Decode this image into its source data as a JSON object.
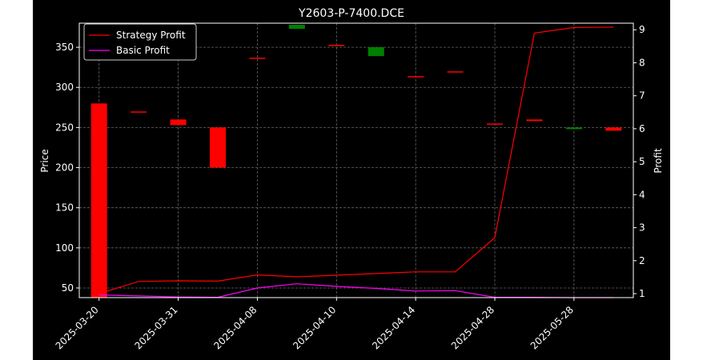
{
  "chart_data": {
    "type": "candlestick+line",
    "title": "Y2603-P-7400.DCE",
    "ylabel_left": "Price",
    "ylabel_right": "Profit",
    "x_tick_labels": [
      "2025-03-20",
      "2025-03-31",
      "2025-04-08",
      "2025-04-10",
      "2025-04-14",
      "2025-04-28",
      "2025-05-28"
    ],
    "y_left_ticks": [
      50,
      100,
      150,
      200,
      250,
      300,
      350
    ],
    "y_left_range": [
      38,
      380
    ],
    "y_right_ticks": [
      1,
      2,
      3,
      4,
      5,
      6,
      7,
      8,
      9
    ],
    "y_right_range": [
      0.88,
      9.2
    ],
    "grid": true,
    "legend_position": "top-left",
    "candles": [
      {
        "i": 0,
        "open": 280,
        "close": 38,
        "color": "down"
      },
      {
        "i": 1,
        "open": 270,
        "close": 269,
        "color": "down"
      },
      {
        "i": 2,
        "open": 260,
        "close": 253,
        "color": "down"
      },
      {
        "i": 3,
        "open": 250,
        "close": 200,
        "color": "down"
      },
      {
        "i": 4,
        "open": 337,
        "close": 336,
        "color": "down"
      },
      {
        "i": 5,
        "open": 373,
        "close": 378,
        "color": "up"
      },
      {
        "i": 6,
        "open": 353,
        "close": 352,
        "color": "down"
      },
      {
        "i": 7,
        "open": 339,
        "close": 350,
        "color": "up"
      },
      {
        "i": 8,
        "open": 314,
        "close": 313,
        "color": "down"
      },
      {
        "i": 9,
        "open": 320,
        "close": 319,
        "color": "down"
      },
      {
        "i": 10,
        "open": 255,
        "close": 254,
        "color": "down"
      },
      {
        "i": 11,
        "open": 260,
        "close": 258,
        "color": "down"
      },
      {
        "i": 12,
        "open": 248,
        "close": 250,
        "color": "up"
      },
      {
        "i": 13,
        "open": 250,
        "close": 246,
        "color": "down"
      }
    ],
    "series": [
      {
        "name": "Strategy Profit",
        "color": "#ff0000",
        "values": [
          1.0,
          1.37,
          1.39,
          1.38,
          1.57,
          1.51,
          1.56,
          1.61,
          1.66,
          1.66,
          2.7,
          8.9,
          9.07,
          9.08
        ]
      },
      {
        "name": "Basic Profit",
        "color": "#ff00ff",
        "values": [
          0.96,
          0.93,
          0.9,
          0.89,
          1.17,
          1.3,
          1.22,
          1.16,
          1.08,
          1.09,
          0.89,
          0.89,
          0.88,
          0.88
        ]
      }
    ],
    "colors": {
      "up": "#008000",
      "down": "#ff0000"
    }
  }
}
